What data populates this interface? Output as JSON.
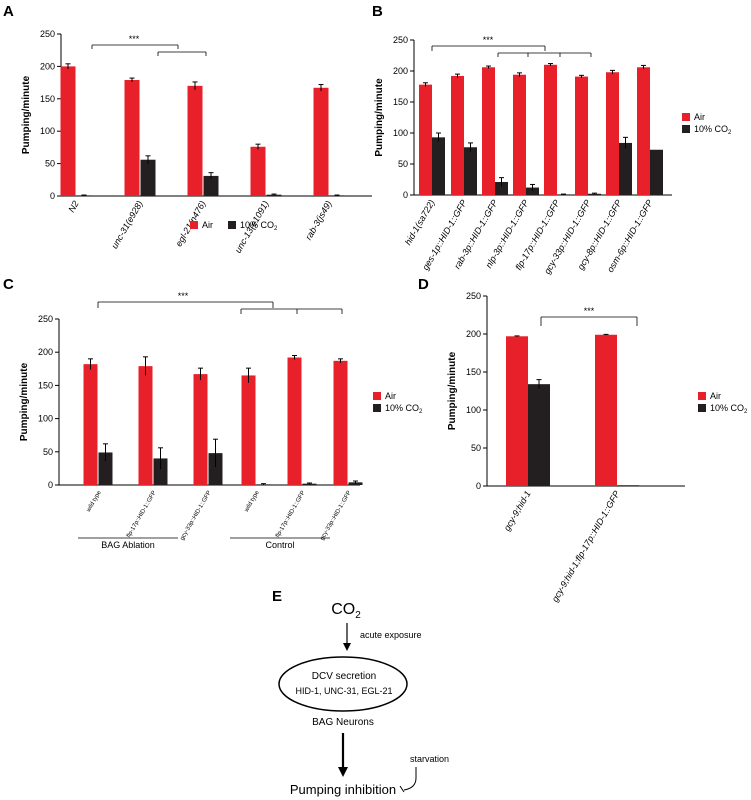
{
  "colors": {
    "air": "#e8202a",
    "co2": "#231f20"
  },
  "legend": {
    "air": "Air",
    "co2": "10% CO",
    "co2_sub": "2"
  },
  "chart_data": [
    {
      "panel": "A",
      "type": "bar",
      "ylabel": "Pumping/minute",
      "ylim": [
        0,
        250
      ],
      "yticks": [
        0,
        50,
        100,
        150,
        200,
        250
      ],
      "categories": [
        "N2",
        "unc-31(e928)",
        "egl-21(n476)",
        "unc-13(e1091)",
        "rab-3(js49)"
      ],
      "series": [
        {
          "name": "Air",
          "values": [
            200,
            179,
            170,
            76,
            167
          ],
          "errors": [
            4,
            3,
            6,
            4,
            5
          ]
        },
        {
          "name": "10% CO2",
          "values": [
            1,
            56,
            31,
            2,
            1
          ],
          "errors": [
            0.5,
            6,
            5,
            1,
            0.5
          ]
        }
      ],
      "significance": "***",
      "legend_position": "bottom"
    },
    {
      "panel": "B",
      "type": "bar",
      "ylabel": "Pumping/minute",
      "ylim": [
        0,
        250
      ],
      "yticks": [
        0,
        50,
        100,
        150,
        200,
        250
      ],
      "categories": [
        "hid-1(sa722)",
        "ges-1p::HID-1::GFP",
        "rab-3p::HID-1::GFP",
        "nlp-3p::HID-1::GFP",
        "flp-17p::HID-1::GFP",
        "gcy-33p::HID-1::GFP",
        "gcy-8p::HID-1::GFP",
        "osm-6p::HID-1::GFP"
      ],
      "series": [
        {
          "name": "Air",
          "values": [
            178,
            192,
            206,
            194,
            210,
            191,
            198,
            206
          ],
          "errors": [
            3,
            3,
            2,
            3,
            2,
            2,
            3,
            3
          ]
        },
        {
          "name": "10% CO2",
          "values": [
            93,
            77,
            21,
            12,
            1,
            2,
            84,
            73
          ],
          "errors": [
            7,
            7,
            7,
            5,
            0.5,
            1,
            9,
            0
          ]
        }
      ],
      "significance": "***",
      "legend_position": "right"
    },
    {
      "panel": "C",
      "type": "bar",
      "ylabel": "Pumping/minute",
      "ylim": [
        0,
        250
      ],
      "yticks": [
        0,
        50,
        100,
        150,
        200,
        250
      ],
      "categories": [
        "wild type",
        "flp-17p::HID-1::GFP",
        "gcy-33p::HID-1::GFP",
        "wild type",
        "flp-17p::HID-1::GFP",
        "gcy-33p::HID-1::GFP"
      ],
      "groups": [
        {
          "label": "BAG Ablation",
          "span": [
            0,
            2
          ]
        },
        {
          "label": "Control",
          "span": [
            3,
            5
          ]
        }
      ],
      "series": [
        {
          "name": "Air",
          "values": [
            182,
            179,
            167,
            165,
            192,
            187
          ],
          "errors": [
            8,
            14,
            9,
            11,
            3,
            3
          ]
        },
        {
          "name": "10% CO2",
          "values": [
            49,
            40,
            48,
            1,
            2,
            4
          ],
          "errors": [
            13,
            16,
            21,
            1,
            1,
            2
          ]
        }
      ],
      "significance": "***",
      "legend_position": "right"
    },
    {
      "panel": "D",
      "type": "bar",
      "ylabel": "Pumping/minute",
      "ylim": [
        0,
        250
      ],
      "yticks": [
        0,
        50,
        100,
        150,
        200,
        250
      ],
      "categories": [
        "gcy-9;hid-1",
        "gcy-9;hid-1;flp-17p::HID-1::GFP"
      ],
      "series": [
        {
          "name": "Air",
          "values": [
            197,
            199
          ],
          "errors": [
            0.5,
            0.5
          ]
        },
        {
          "name": "10% CO2",
          "values": [
            134,
            1
          ],
          "errors": [
            6,
            0
          ]
        }
      ],
      "significance": "***",
      "legend_position": "right"
    }
  ],
  "panel_e": {
    "label": "E",
    "co2": "CO",
    "co2_sub": "2",
    "exposure": "acute exposure",
    "dcv_title": "DCV secretion",
    "dcv_genes": "HID-1, UNC-31, EGL-21",
    "neurons": "BAG Neurons",
    "starvation": "starvation",
    "outcome": "Pumping inhibition"
  }
}
